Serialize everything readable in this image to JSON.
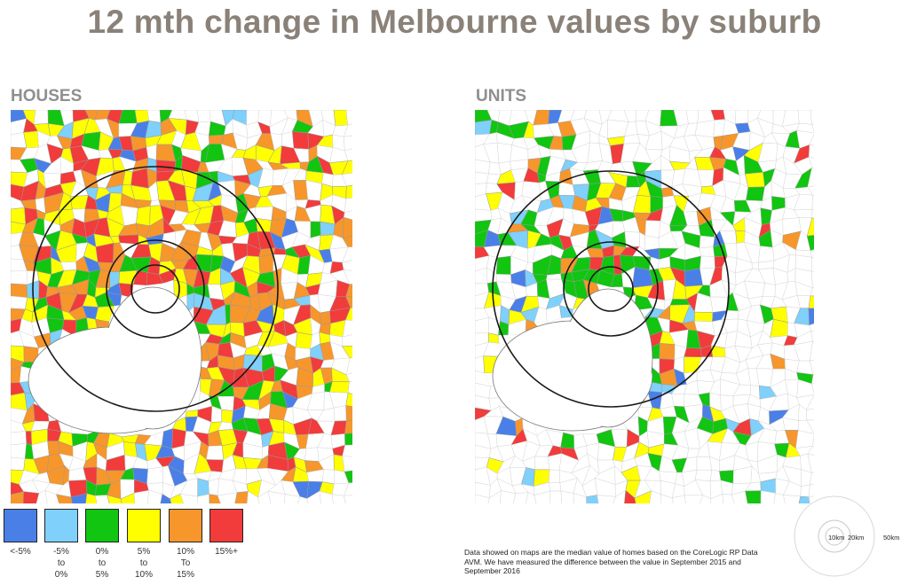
{
  "title": "12 mth change in Melbourne values by suburb",
  "maps": [
    {
      "label": "HOUSES",
      "mix": [
        0.06,
        0.05,
        0.12,
        0.3,
        0.27,
        0.2
      ],
      "coverage": 0.78,
      "inner_coverage": 0.97
    },
    {
      "label": "UNITS",
      "mix": [
        0.05,
        0.1,
        0.33,
        0.22,
        0.14,
        0.16
      ],
      "coverage": 0.26,
      "inner_coverage": 0.92
    }
  ],
  "legend": {
    "items": [
      {
        "lines": [
          "<-5%"
        ],
        "color": "#4a7fe8"
      },
      {
        "lines": [
          "-5%",
          "to",
          "0%"
        ],
        "color": "#7fd0fb"
      },
      {
        "lines": [
          "0%",
          "to",
          "5%"
        ],
        "color": "#11c511"
      },
      {
        "lines": [
          "5%",
          "to",
          "10%"
        ],
        "color": "#ffff00"
      },
      {
        "lines": [
          "10%",
          "To",
          "15%"
        ],
        "color": "#f7962b"
      },
      {
        "lines": [
          "15%+"
        ],
        "color": "#f23b3b"
      }
    ]
  },
  "footnote": "Data showed on maps are the median value of homes based on the CoreLogic RP Data AVM. We have measured the difference between the value in September 2015 and September 2016",
  "scale": {
    "labels": [
      "10km",
      "20km",
      "50km"
    ]
  },
  "colors": {
    "title": "#8a8178",
    "label": "#8f8f8f",
    "border": "#c8c8c8",
    "bay": "#ffffff"
  }
}
